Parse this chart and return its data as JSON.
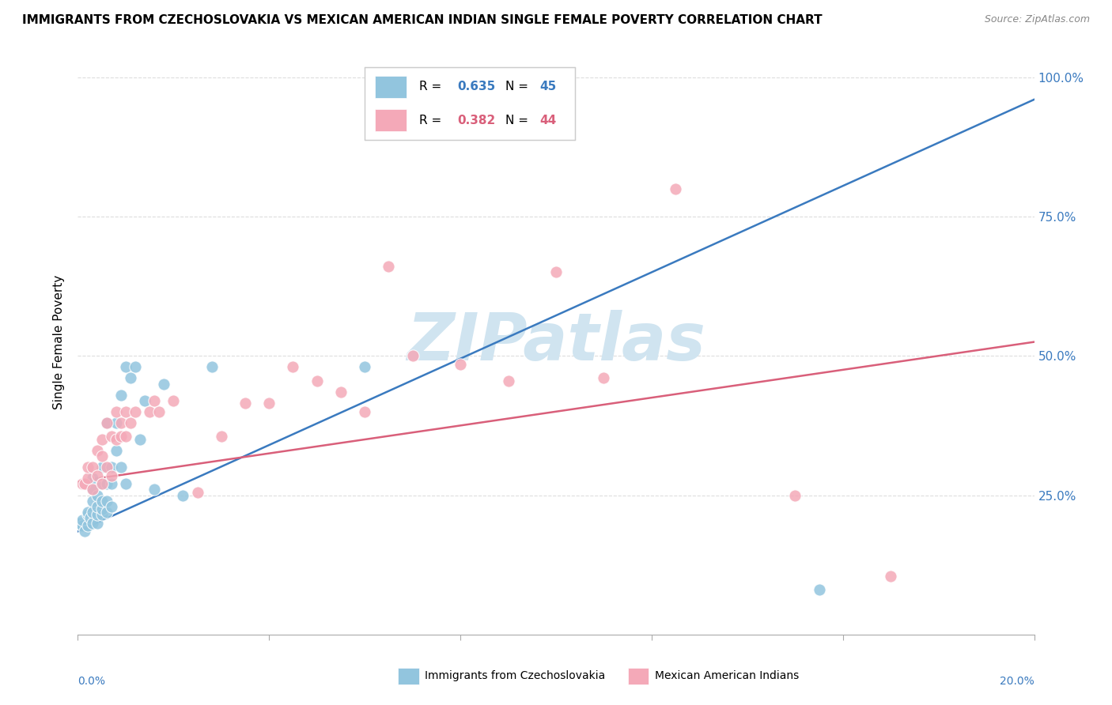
{
  "title": "IMMIGRANTS FROM CZECHOSLOVAKIA VS MEXICAN AMERICAN INDIAN SINGLE FEMALE POVERTY CORRELATION CHART",
  "source": "Source: ZipAtlas.com",
  "ylabel": "Single Female Poverty",
  "y_ticks": [
    0.25,
    0.5,
    0.75,
    1.0
  ],
  "y_tick_labels": [
    "25.0%",
    "50.0%",
    "75.0%",
    "100.0%"
  ],
  "x_range": [
    0.0,
    0.2
  ],
  "y_range": [
    0.0,
    1.05
  ],
  "legend_r1": "0.635",
  "legend_n1": "45",
  "legend_r2": "0.382",
  "legend_n2": "44",
  "series1_color": "#92c5de",
  "series2_color": "#f4a9b8",
  "line1_color": "#3a7abf",
  "line2_color": "#d95f7a",
  "watermark": "ZIPatlas",
  "watermark_color": "#d0e4f0",
  "background_color": "#ffffff",
  "blue_scatter_x": [
    0.0005,
    0.001,
    0.001,
    0.0015,
    0.002,
    0.002,
    0.002,
    0.0025,
    0.003,
    0.003,
    0.003,
    0.003,
    0.003,
    0.004,
    0.004,
    0.004,
    0.004,
    0.005,
    0.005,
    0.005,
    0.005,
    0.005,
    0.006,
    0.006,
    0.006,
    0.006,
    0.007,
    0.007,
    0.007,
    0.008,
    0.008,
    0.009,
    0.009,
    0.01,
    0.01,
    0.011,
    0.012,
    0.013,
    0.014,
    0.016,
    0.018,
    0.022,
    0.028,
    0.06,
    0.155
  ],
  "blue_scatter_y": [
    0.2,
    0.195,
    0.205,
    0.185,
    0.215,
    0.22,
    0.195,
    0.21,
    0.2,
    0.22,
    0.24,
    0.26,
    0.28,
    0.2,
    0.215,
    0.23,
    0.25,
    0.215,
    0.225,
    0.24,
    0.27,
    0.3,
    0.22,
    0.24,
    0.27,
    0.38,
    0.23,
    0.27,
    0.3,
    0.33,
    0.38,
    0.3,
    0.43,
    0.27,
    0.48,
    0.46,
    0.48,
    0.35,
    0.42,
    0.26,
    0.45,
    0.25,
    0.48,
    0.48,
    0.08
  ],
  "pink_scatter_x": [
    0.001,
    0.0015,
    0.002,
    0.002,
    0.003,
    0.003,
    0.004,
    0.004,
    0.005,
    0.005,
    0.005,
    0.006,
    0.006,
    0.007,
    0.007,
    0.008,
    0.008,
    0.009,
    0.009,
    0.01,
    0.01,
    0.011,
    0.012,
    0.015,
    0.016,
    0.017,
    0.02,
    0.025,
    0.03,
    0.035,
    0.04,
    0.045,
    0.05,
    0.055,
    0.06,
    0.065,
    0.07,
    0.08,
    0.09,
    0.1,
    0.11,
    0.125,
    0.15,
    0.17
  ],
  "pink_scatter_y": [
    0.27,
    0.27,
    0.28,
    0.3,
    0.26,
    0.3,
    0.285,
    0.33,
    0.27,
    0.32,
    0.35,
    0.3,
    0.38,
    0.285,
    0.355,
    0.35,
    0.4,
    0.355,
    0.38,
    0.355,
    0.4,
    0.38,
    0.4,
    0.4,
    0.42,
    0.4,
    0.42,
    0.255,
    0.355,
    0.415,
    0.415,
    0.48,
    0.455,
    0.435,
    0.4,
    0.66,
    0.5,
    0.485,
    0.455,
    0.65,
    0.46,
    0.8,
    0.25,
    0.105
  ],
  "blue_line_x": [
    0.0,
    0.2
  ],
  "blue_line_y": [
    0.185,
    0.96
  ],
  "pink_line_x": [
    0.0,
    0.2
  ],
  "pink_line_y": [
    0.275,
    0.525
  ],
  "x_tick_positions": [
    0.0,
    0.04,
    0.08,
    0.12,
    0.16,
    0.2
  ]
}
